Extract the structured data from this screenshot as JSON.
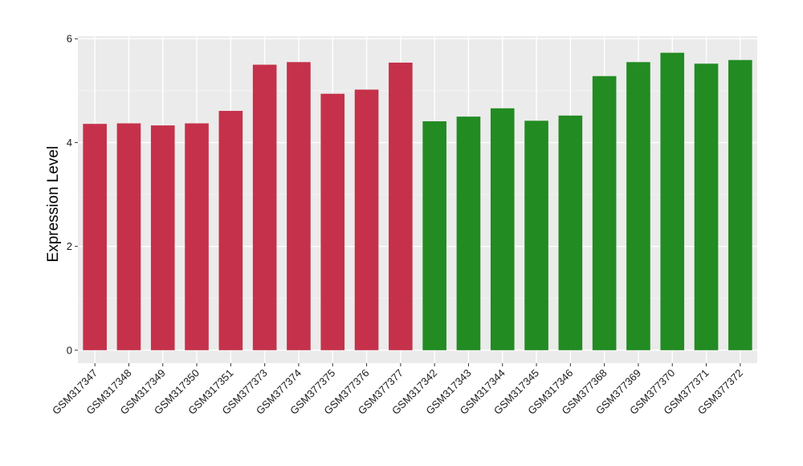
{
  "chart_data": {
    "type": "bar",
    "title": "",
    "xlabel": "",
    "ylabel": "Expression Level",
    "ylim": [
      -0.25,
      6.05
    ],
    "yticks": [
      0,
      2,
      4,
      6
    ],
    "grid": true,
    "legend": "none",
    "series": [
      {
        "color": "#c5314a",
        "categories": [
          "GSM317347",
          "GSM317348",
          "GSM317349",
          "GSM317350",
          "GSM317351",
          "GSM377373",
          "GSM377374",
          "GSM377375",
          "GSM377376",
          "GSM377377"
        ],
        "values": [
          4.36,
          4.37,
          4.33,
          4.37,
          4.61,
          5.5,
          5.55,
          4.94,
          5.02,
          5.54
        ]
      },
      {
        "color": "#228b22",
        "categories": [
          "GSM317342",
          "GSM317343",
          "GSM317344",
          "GSM317345",
          "GSM317346",
          "GSM377368",
          "GSM377369",
          "GSM377370",
          "GSM377371",
          "GSM377372"
        ],
        "values": [
          4.41,
          4.5,
          4.66,
          4.42,
          4.52,
          5.28,
          5.55,
          5.73,
          5.52,
          5.59
        ]
      }
    ]
  }
}
